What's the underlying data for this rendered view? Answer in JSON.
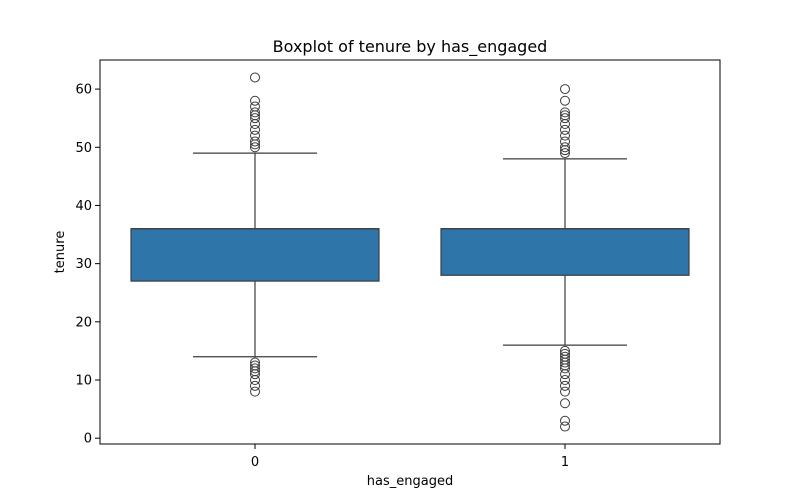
{
  "chart_data": {
    "type": "boxplot",
    "title": "Boxplot of tenure by has_engaged",
    "xlabel": "has_engaged",
    "ylabel": "tenure",
    "categories": [
      "0",
      "1"
    ],
    "ylim": [
      -1,
      65
    ],
    "yticks": [
      0,
      10,
      20,
      30,
      40,
      50,
      60
    ],
    "grid": false,
    "box_color": "#2e75a9",
    "boxes": [
      {
        "category": "0",
        "whisker_low": 14,
        "q1": 27,
        "median": 36,
        "q3": 36,
        "whisker_high": 49,
        "outliers": [
          8,
          9,
          10,
          11,
          11.5,
          12,
          12.5,
          13,
          50,
          50.5,
          51,
          52,
          53,
          54,
          55,
          55.5,
          56,
          57,
          58,
          62
        ]
      },
      {
        "category": "1",
        "whisker_low": 16,
        "q1": 28,
        "median": 36,
        "q3": 36,
        "whisker_high": 48,
        "outliers": [
          2,
          3,
          6,
          8,
          9,
          10,
          11,
          12,
          12.5,
          13,
          13.5,
          14,
          14.5,
          15,
          49,
          49.5,
          50,
          51,
          52,
          53,
          54,
          55,
          55.5,
          56,
          58,
          60
        ]
      }
    ]
  }
}
